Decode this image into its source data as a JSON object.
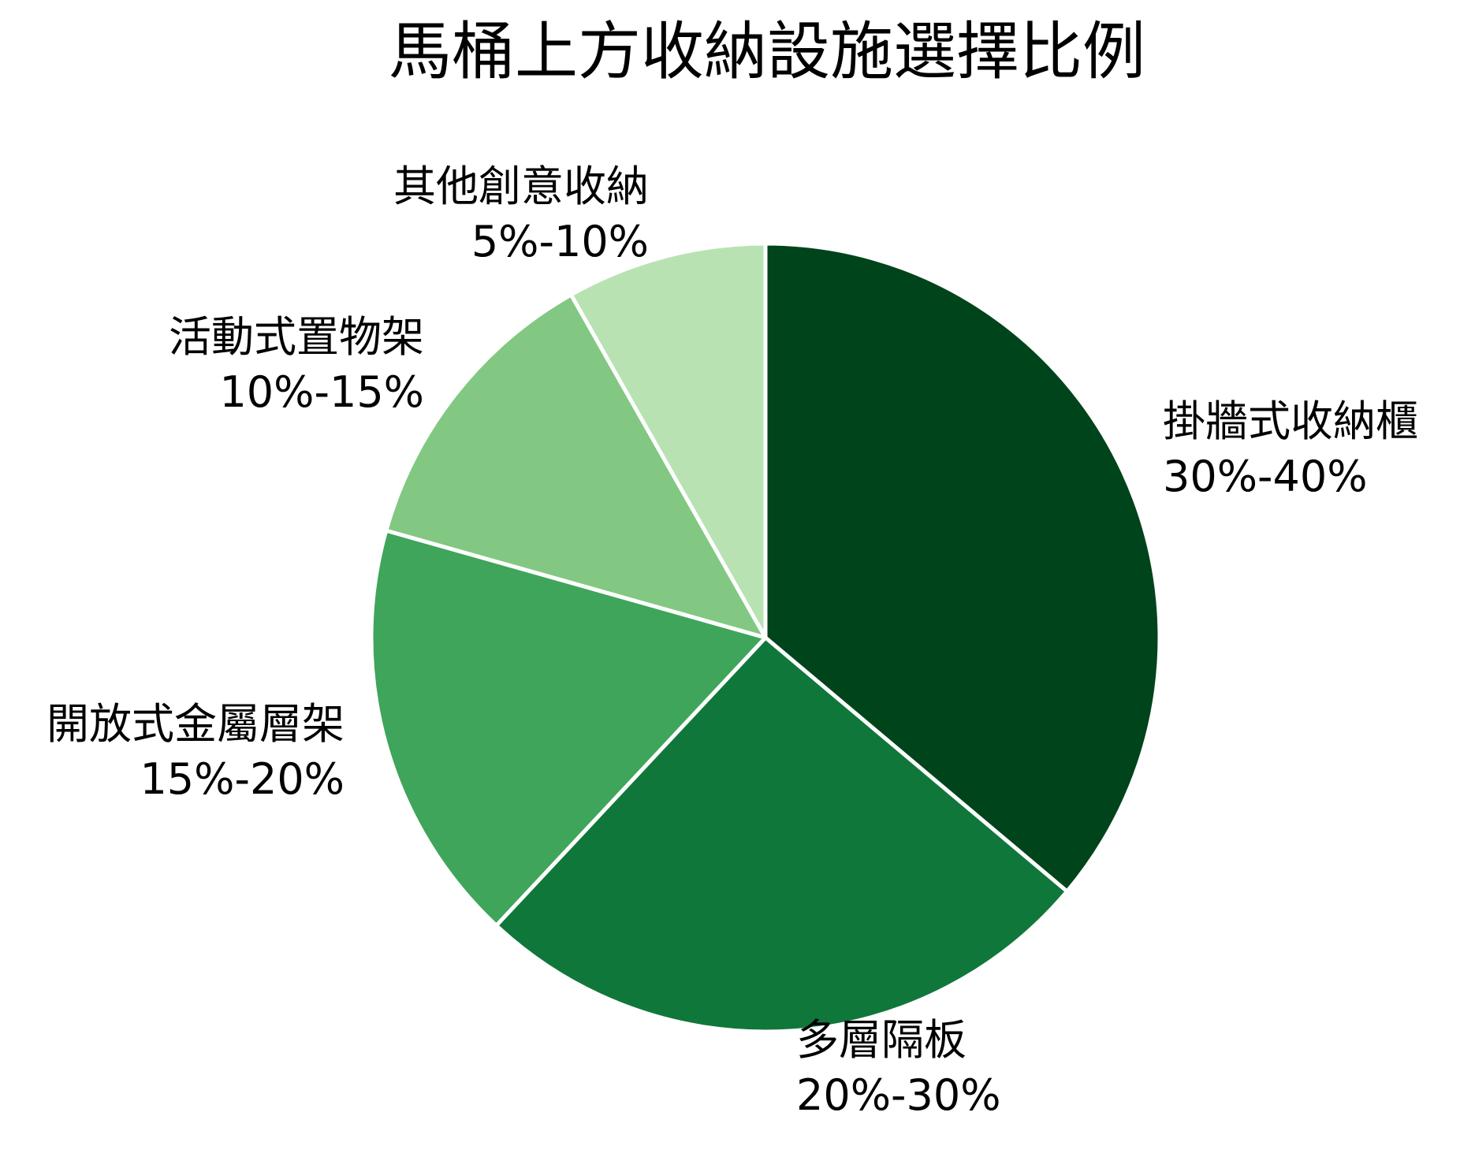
{
  "chart_data": {
    "type": "pie",
    "title": "馬桶上方收納設施選擇比例",
    "categories": [
      "掛牆式收納櫃",
      "多層隔板",
      "開放式金屬層架",
      "活動式置物架",
      "其他創意收納"
    ],
    "labels": [
      "30%-40%",
      "20%-30%",
      "15%-20%",
      "10%-15%",
      "5%-10%"
    ],
    "values": [
      36.1,
      25.8,
      17.4,
      12.4,
      8.2
    ],
    "colors": [
      "#00441b",
      "#10773a",
      "#3fa55b",
      "#82c882",
      "#b8e2b2"
    ],
    "start_angle": "top, clockwise",
    "legend": "none (labels placed beside slices)"
  },
  "title": "馬桶上方收納設施選擇比例",
  "slices": [
    {
      "name": "掛牆式收納櫃",
      "range": "30%-40%"
    },
    {
      "name": "多層隔板",
      "range": "20%-30%"
    },
    {
      "name": "開放式金屬層架",
      "range": "15%-20%"
    },
    {
      "name": "活動式置物架",
      "range": "10%-15%"
    },
    {
      "name": "其他創意收納",
      "range": "5%-10%"
    }
  ]
}
